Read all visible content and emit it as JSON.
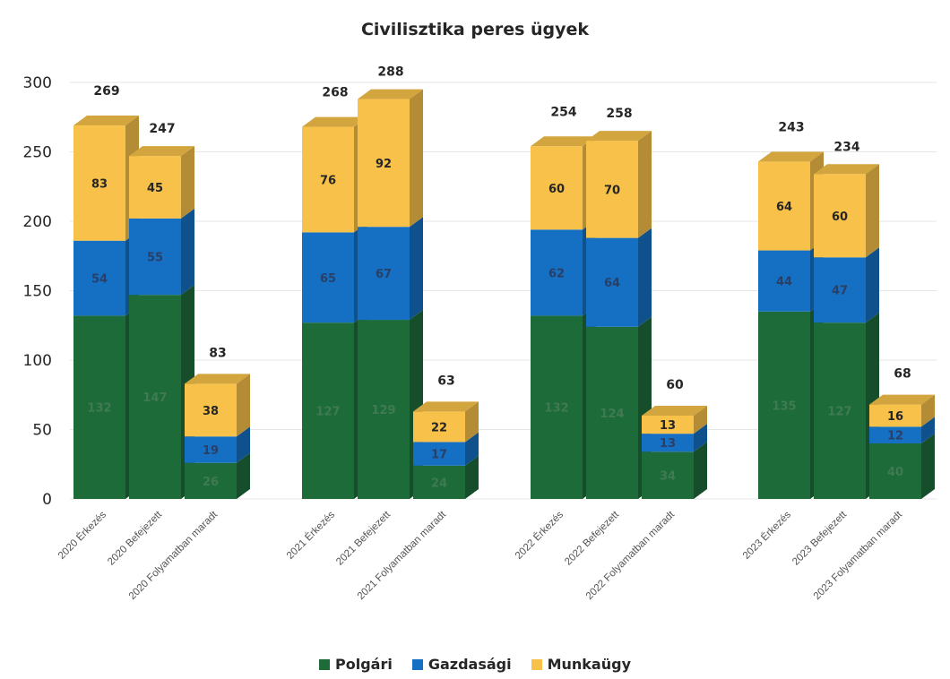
{
  "chart_data": {
    "type": "bar",
    "stacked": true,
    "title": "Civilisztika peres ügyek",
    "categories": [
      "2020 Érkezés",
      "2020 Befejezett",
      "2020  Folyamatban maradt",
      "2021 Érkezés",
      "2021 Befejezett",
      "2021  Folyamatban maradt",
      "2022 Érkezés",
      "2022 Befejezett",
      "2022  Folyamatban maradt",
      "2023 Érkezés",
      "2023 Befejezett",
      "2023  Folyamatban maradt"
    ],
    "series": [
      {
        "name": "Polgári",
        "color": "#1e6b3a",
        "values": [
          132,
          147,
          26,
          127,
          129,
          24,
          132,
          124,
          34,
          135,
          127,
          40
        ]
      },
      {
        "name": "Gazdasági",
        "color": "#1570c4",
        "values": [
          54,
          55,
          19,
          65,
          67,
          17,
          62,
          64,
          13,
          44,
          47,
          12
        ]
      },
      {
        "name": "Munkaügy",
        "color": "#f8c24a",
        "values": [
          83,
          45,
          38,
          76,
          92,
          22,
          60,
          70,
          13,
          64,
          60,
          16
        ]
      }
    ],
    "totals": [
      269,
      247,
      83,
      268,
      288,
      63,
      254,
      258,
      60,
      243,
      234,
      68
    ],
    "ylim": [
      0,
      300
    ],
    "yticks": [
      0,
      50,
      100,
      150,
      200,
      250,
      300
    ],
    "grid": true,
    "legend_position": "bottom"
  }
}
